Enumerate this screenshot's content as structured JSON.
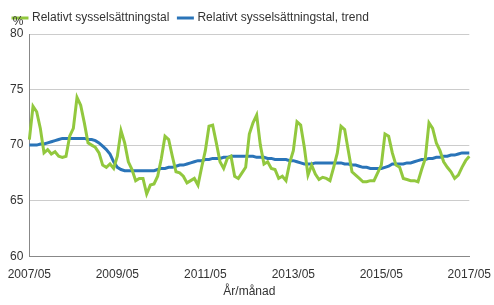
{
  "chart_data": {
    "type": "line",
    "y_label": "%",
    "x_label": "År/månad",
    "legend": "top",
    "grid": true,
    "ylim": [
      60,
      80
    ],
    "yticks": [
      60,
      65,
      70,
      75,
      80
    ],
    "categories": [
      "2007/05",
      null,
      null,
      null,
      null,
      null,
      null,
      null,
      null,
      null,
      null,
      null,
      null,
      null,
      null,
      null,
      null,
      null,
      null,
      null,
      null,
      null,
      null,
      null,
      "2009/05",
      null,
      null,
      null,
      null,
      null,
      null,
      null,
      null,
      null,
      null,
      null,
      null,
      null,
      null,
      null,
      null,
      null,
      null,
      null,
      null,
      null,
      null,
      null,
      "2011/05",
      null,
      null,
      null,
      null,
      null,
      null,
      null,
      null,
      null,
      null,
      null,
      null,
      null,
      null,
      null,
      null,
      null,
      null,
      null,
      null,
      null,
      null,
      null,
      "2013/05",
      null,
      null,
      null,
      null,
      null,
      null,
      null,
      null,
      null,
      null,
      null,
      null,
      null,
      null,
      null,
      null,
      null,
      null,
      null,
      null,
      null,
      null,
      null,
      "2015/05",
      null,
      null,
      null,
      null,
      null,
      null,
      null,
      null,
      null,
      null,
      null,
      null,
      null,
      null,
      null,
      null,
      null,
      null,
      null,
      null,
      null,
      null,
      null,
      "2017/05"
    ],
    "series": [
      {
        "name": "Relativt sysselsättningstal",
        "color": "#92c83e",
        "values": [
          70.5,
          73.5,
          73.0,
          71.5,
          69.3,
          69.6,
          69.2,
          69.4,
          69.0,
          68.9,
          69.0,
          70.8,
          71.5,
          74.3,
          73.6,
          72.0,
          70.2,
          70.0,
          69.8,
          69.3,
          68.2,
          68.0,
          68.3,
          67.9,
          69.0,
          71.3,
          70.2,
          68.5,
          67.8,
          66.8,
          67.0,
          67.0,
          65.6,
          66.4,
          66.5,
          67.2,
          68.8,
          70.8,
          70.5,
          69.0,
          67.6,
          67.5,
          67.2,
          66.6,
          66.8,
          67.0,
          66.4,
          68.0,
          69.5,
          71.7,
          71.8,
          70.2,
          68.5,
          67.9,
          68.8,
          69.0,
          67.2,
          67.0,
          67.5,
          68.0,
          71.0,
          72.0,
          72.7,
          70.0,
          68.3,
          68.5,
          67.9,
          67.8,
          67.0,
          67.2,
          66.8,
          68.4,
          69.5,
          72.1,
          71.8,
          69.8,
          67.3,
          68.2,
          67.4,
          66.9,
          67.1,
          67.0,
          66.8,
          68.0,
          69.3,
          71.7,
          71.4,
          69.5,
          67.6,
          67.3,
          67.0,
          66.7,
          66.7,
          66.8,
          66.8,
          67.5,
          68.2,
          71.0,
          70.8,
          69.3,
          68.2,
          68.0,
          67.0,
          66.9,
          66.8,
          66.8,
          66.7,
          67.8,
          68.8,
          72.0,
          71.5,
          70.2,
          69.5,
          68.5,
          68.0,
          67.6,
          67.0,
          67.3,
          68.0,
          68.6,
          69.0
        ]
      },
      {
        "name": "Relativt sysselsättningstal, trend",
        "color": "#2a74b8",
        "values": [
          70.0,
          70.0,
          70.0,
          70.1,
          70.1,
          70.2,
          70.3,
          70.4,
          70.5,
          70.6,
          70.6,
          70.6,
          70.6,
          70.6,
          70.6,
          70.6,
          70.5,
          70.5,
          70.4,
          70.2,
          69.9,
          69.6,
          69.2,
          68.5,
          68.0,
          67.8,
          67.7,
          67.7,
          67.7,
          67.7,
          67.7,
          67.7,
          67.7,
          67.7,
          67.7,
          67.8,
          67.9,
          67.9,
          68.0,
          68.0,
          68.1,
          68.2,
          68.2,
          68.3,
          68.4,
          68.5,
          68.6,
          68.6,
          68.7,
          68.7,
          68.8,
          68.8,
          68.8,
          68.9,
          68.9,
          69.0,
          69.0,
          69.0,
          69.0,
          69.0,
          69.0,
          69.0,
          68.9,
          68.9,
          68.9,
          68.8,
          68.8,
          68.7,
          68.7,
          68.7,
          68.7,
          68.6,
          68.6,
          68.5,
          68.4,
          68.3,
          68.3,
          68.3,
          68.4,
          68.4,
          68.4,
          68.4,
          68.4,
          68.4,
          68.4,
          68.4,
          68.3,
          68.3,
          68.2,
          68.2,
          68.1,
          68.0,
          68.0,
          67.9,
          67.9,
          67.9,
          67.9,
          68.0,
          68.1,
          68.3,
          68.3,
          68.3,
          68.3,
          68.4,
          68.4,
          68.5,
          68.6,
          68.7,
          68.7,
          68.8,
          68.8,
          68.9,
          68.9,
          69.0,
          69.0,
          69.1,
          69.1,
          69.2,
          69.3,
          69.3,
          69.3
        ]
      }
    ]
  }
}
